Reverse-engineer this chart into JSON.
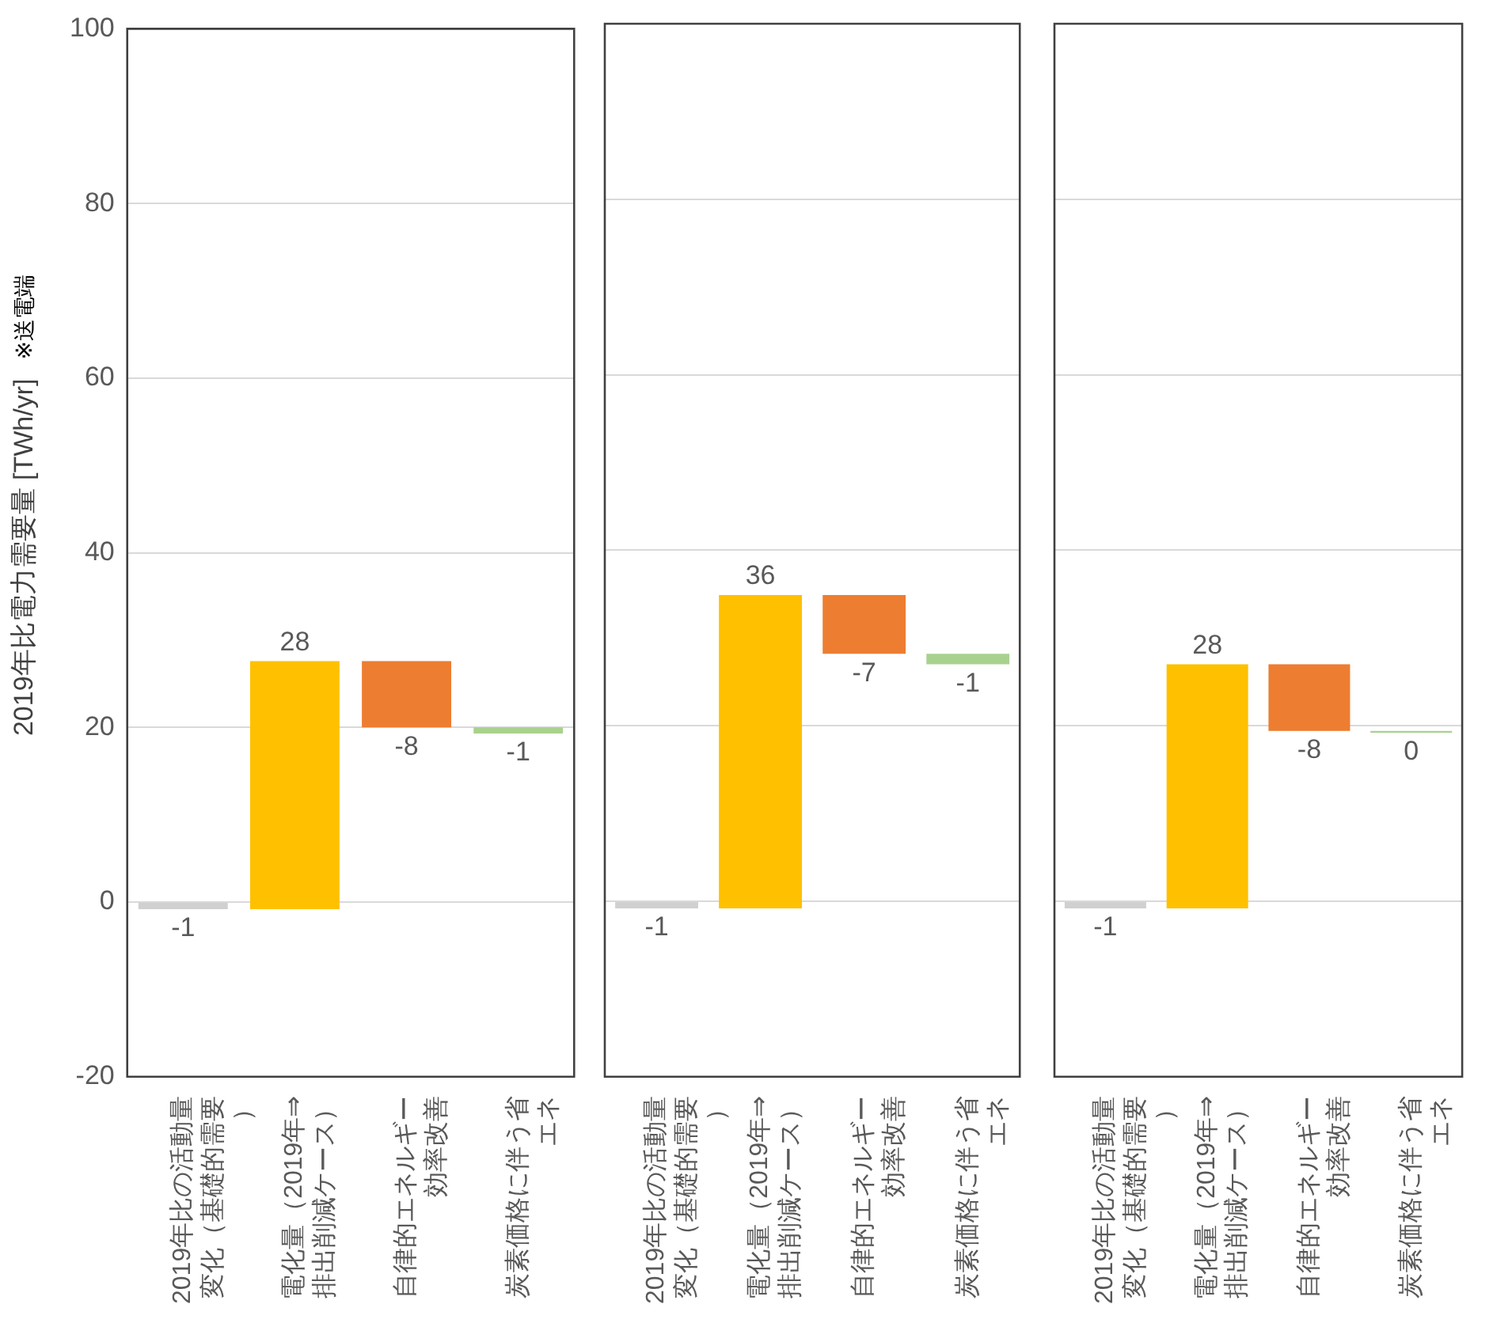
{
  "chart_data": [
    {
      "type": "bar",
      "ylabel": "2019年比電力需要量 [TWh/yr]",
      "annotations": [
        "※送電端"
      ],
      "categories": [
        "2019年比の活動量変化（基礎的需要）",
        "電化量（2019年⇒排出削減ケース）",
        "自律的エネルギー効率改善",
        "炭素価格に伴う省エネ"
      ],
      "base": [
        0,
        -0.8,
        27.6,
        20.0
      ],
      "values": [
        -0.8,
        28.4,
        -7.6,
        -0.7
      ],
      "value_labels": [
        "-1",
        "28",
        "-8",
        "-1"
      ],
      "colors": [
        "#d0d0d0",
        "#ffc000",
        "#ed7d31",
        "#a9d18e"
      ],
      "ylim": [
        -20,
        100
      ],
      "yticks": [
        -20,
        0,
        20,
        40,
        60,
        80,
        100
      ],
      "grid": "y"
    },
    {
      "type": "bar",
      "categories": [
        "2019年比の活動量変化（基礎的需要）",
        "電化量（2019年⇒排出削減ケース）",
        "自律的エネルギー効率改善",
        "炭素価格に伴う省エネ"
      ],
      "base": [
        0,
        -0.8,
        34.9,
        28.2
      ],
      "values": [
        -0.8,
        35.7,
        -6.7,
        -1.2
      ],
      "value_labels": [
        "-1",
        "36",
        "-7",
        "-1"
      ],
      "colors": [
        "#d0d0d0",
        "#ffc000",
        "#ed7d31",
        "#a9d18e"
      ],
      "ylim": [
        -20,
        100
      ],
      "yticks": [
        -20,
        0,
        20,
        40,
        60,
        80,
        100
      ],
      "grid": "y",
      "tick_labels": "x"
    },
    {
      "type": "bar",
      "categories": [
        "2019年比の活動量変化（基礎的需要）",
        "電化量（2019年⇒排出削減ケース）",
        "自律的エネルギー効率改善",
        "炭素価格に伴う省エネ"
      ],
      "base": [
        0,
        -0.8,
        27.0,
        19.4
      ],
      "values": [
        -0.8,
        27.8,
        -7.6,
        -0.2
      ],
      "value_labels": [
        "-1",
        "28",
        "-8",
        "0"
      ],
      "colors": [
        "#d0d0d0",
        "#ffc000",
        "#ed7d31",
        "#a9d18e"
      ],
      "ylim": [
        -20,
        100
      ],
      "yticks": [
        -20,
        0,
        20,
        40,
        60,
        80,
        100
      ],
      "grid": "y",
      "tick_labels": "x"
    }
  ]
}
